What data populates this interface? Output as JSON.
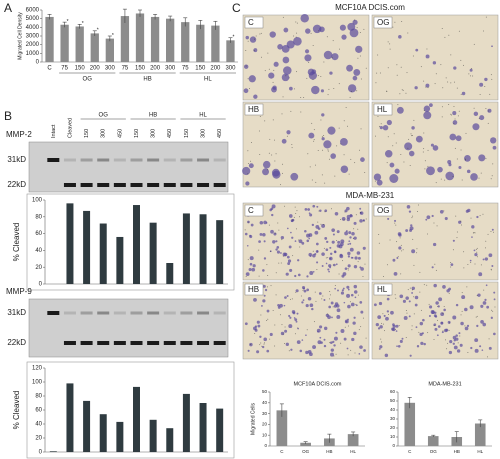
{
  "panel_labels": [
    "A",
    "B",
    "C"
  ],
  "chart_data": [
    {
      "type": "bar",
      "y_label": "Migrated Cell Density",
      "categories": [
        "C",
        "75",
        "150",
        "200",
        "300",
        "75",
        "150",
        "200",
        "300",
        "75",
        "150",
        "200",
        "300"
      ],
      "values": [
        5200,
        4300,
        4100,
        3300,
        2700,
        5300,
        5600,
        5200,
        5000,
        4600,
        4300,
        4200,
        2500
      ],
      "errors": [
        300,
        300,
        250,
        300,
        300,
        800,
        400,
        300,
        300,
        500,
        500,
        500,
        300
      ],
      "markers": [
        null,
        "*",
        "*",
        "*",
        "*",
        null,
        null,
        null,
        null,
        null,
        null,
        null,
        "*"
      ],
      "groups": [
        "OG",
        "HB",
        "HL"
      ],
      "color": "#8c8c8c",
      "ylim": [
        0,
        6000
      ],
      "yticks": [
        0,
        1000,
        2000,
        3000,
        4000,
        5000,
        6000
      ]
    },
    {
      "type": "bar",
      "y_label": "% Cleaved",
      "values": [
        0,
        96,
        87,
        72,
        56,
        94,
        73,
        25,
        84,
        83,
        76
      ],
      "color": "#2f3b40",
      "ylim": [
        0,
        100
      ],
      "yticks": [
        0,
        20,
        40,
        60,
        80,
        100
      ]
    },
    {
      "type": "bar",
      "y_label": "% Cleaved",
      "values": [
        1,
        98,
        73,
        54,
        43,
        93,
        46,
        34,
        83,
        70,
        62
      ],
      "color": "#2f3b40",
      "ylim": [
        0,
        120
      ],
      "yticks": [
        0,
        20,
        40,
        60,
        80,
        100,
        120
      ]
    },
    {
      "type": "bar",
      "title": "MCF10A DCIS.com",
      "y_label": "Migrated Cells",
      "categories": [
        "C",
        "OG",
        "HB",
        "HL"
      ],
      "values": [
        33,
        3,
        7,
        11
      ],
      "errors": [
        6,
        1,
        4,
        2
      ],
      "color": "#8c8c8c",
      "ylim": [
        0,
        50
      ],
      "yticks": [
        0,
        10,
        20,
        30,
        40,
        50
      ]
    },
    {
      "type": "bar",
      "title": "MDA-MB-231",
      "categories": [
        "C",
        "OG",
        "HB",
        "HL"
      ],
      "values": [
        48,
        11,
        10,
        25
      ],
      "errors": [
        6,
        1,
        6,
        4
      ],
      "color": "#8c8c8c",
      "ylim": [
        0,
        60
      ],
      "yticks": [
        0,
        10,
        20,
        30,
        40,
        50,
        60
      ]
    }
  ],
  "blots": [
    {
      "protein": "MMP-2",
      "lanes": [
        "Intact",
        "Cleaved",
        "150",
        "300",
        "450",
        "150",
        "300",
        "450",
        "150",
        "300",
        "450"
      ],
      "groups": [
        "OG",
        "HB",
        "HL"
      ],
      "markers": [
        "31kD",
        "22kD"
      ]
    },
    {
      "protein": "MMP-9",
      "markers": [
        "31kD",
        "22kD"
      ]
    }
  ],
  "micrographs": [
    {
      "cell_line": "MCF10A DCIS.com",
      "conditions": [
        "C",
        "OG",
        "HB",
        "HL"
      ]
    },
    {
      "cell_line": "MDA-MB-231",
      "conditions": [
        "C",
        "OG",
        "HB",
        "HL"
      ]
    }
  ]
}
